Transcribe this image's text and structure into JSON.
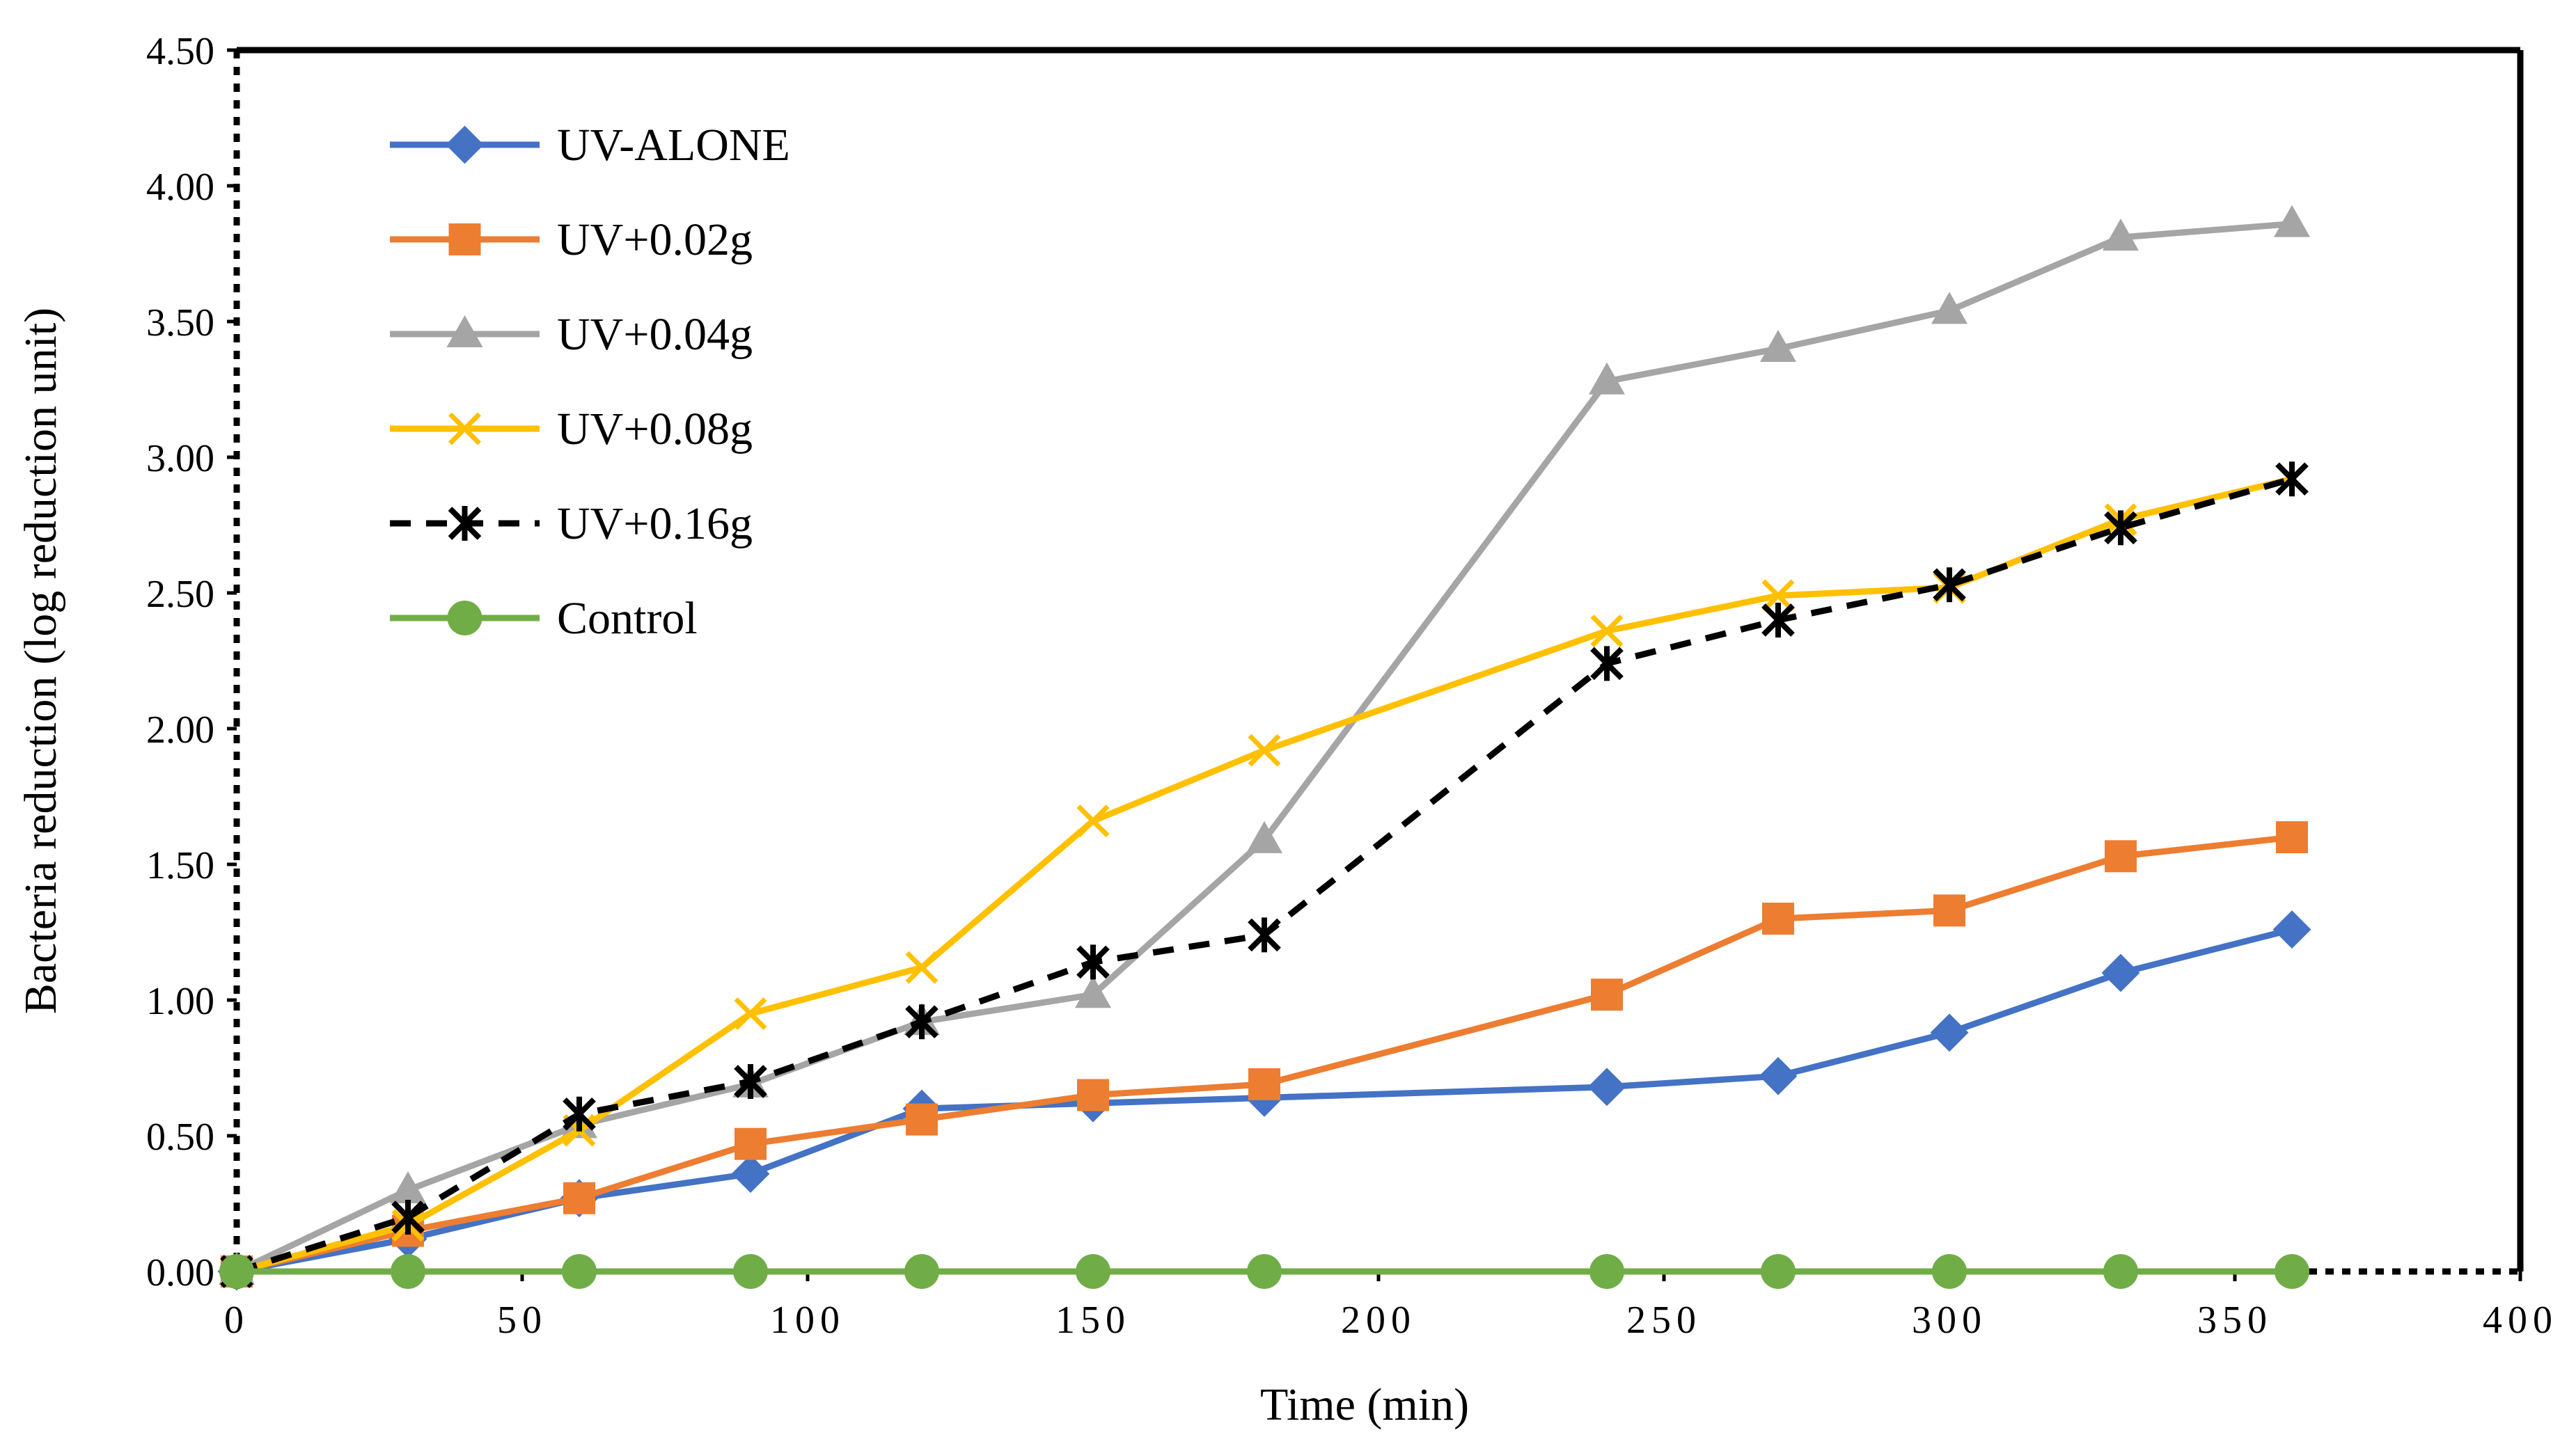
{
  "chart_data": {
    "type": "line",
    "title": "",
    "xlabel": "Time (min)",
    "ylabel": "Bacteria reduction (log reduction unit)",
    "xlim": [
      0,
      400
    ],
    "ylim": [
      0,
      4.5
    ],
    "xticks": [
      0,
      50,
      100,
      150,
      200,
      250,
      300,
      350,
      400
    ],
    "xtick_labels": [
      "0",
      "50",
      "100",
      "150",
      "200",
      "250",
      "300",
      "350",
      "400"
    ],
    "yticks": [
      0,
      0.5,
      1.0,
      1.5,
      2.0,
      2.5,
      3.0,
      3.5,
      4.0,
      4.5
    ],
    "ytick_labels": [
      "0.00",
      "0.50",
      "1.00",
      "1.50",
      "2.00",
      "2.50",
      "3.00",
      "3.50",
      "4.00",
      "4.50"
    ],
    "grid": false,
    "legend_position": "top-left",
    "x": [
      0,
      30,
      60,
      90,
      120,
      150,
      180,
      240,
      270,
      300,
      330,
      360
    ],
    "series": [
      {
        "name": "UV-ALONE",
        "color": "#4472C4",
        "marker": "diamond",
        "dash": "solid",
        "values": [
          0,
          0.12,
          0.27,
          0.36,
          0.6,
          0.62,
          0.64,
          0.68,
          0.72,
          0.88,
          1.1,
          1.26
        ]
      },
      {
        "name": "UV+0.02g",
        "color": "#ED7D31",
        "marker": "square",
        "dash": "solid",
        "values": [
          0,
          0.15,
          0.27,
          0.47,
          0.56,
          0.65,
          0.69,
          1.02,
          1.3,
          1.33,
          1.53,
          1.6
        ]
      },
      {
        "name": "UV+0.04g",
        "color": "#A5A5A5",
        "marker": "triangle",
        "dash": "solid",
        "values": [
          0,
          0.3,
          0.54,
          0.69,
          0.92,
          1.02,
          1.59,
          3.28,
          3.4,
          3.54,
          3.81,
          3.86
        ]
      },
      {
        "name": "UV+0.08g",
        "color": "#FFC000",
        "marker": "x",
        "dash": "solid",
        "values": [
          0,
          0.17,
          0.52,
          0.95,
          1.12,
          1.66,
          1.92,
          2.36,
          2.49,
          2.52,
          2.77,
          2.92
        ]
      },
      {
        "name": "UV+0.16g",
        "color": "#000000",
        "marker": "asterisk",
        "dash": "dashed",
        "values": [
          0,
          0.2,
          0.58,
          0.7,
          0.92,
          1.14,
          1.24,
          2.24,
          2.4,
          2.53,
          2.74,
          2.92
        ]
      },
      {
        "name": "Control",
        "color": "#70AD47",
        "marker": "circle",
        "dash": "solid",
        "values": [
          0,
          0,
          0,
          0,
          0,
          0,
          0,
          0,
          0,
          0,
          0,
          0
        ]
      }
    ]
  }
}
